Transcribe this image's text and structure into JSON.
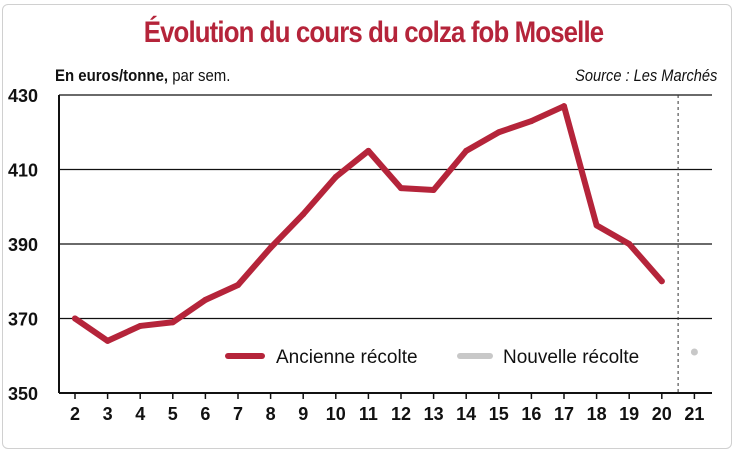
{
  "chart_data": {
    "type": "line",
    "title": "Évolution du cours du colza fob Moselle",
    "unit_bold": "En euros/tonne,",
    "unit_rest": " par sem.",
    "source": "Source : Les Marchés",
    "x": [
      2,
      3,
      4,
      5,
      6,
      7,
      8,
      9,
      10,
      11,
      12,
      13,
      14,
      15,
      16,
      17,
      18,
      19,
      20,
      21
    ],
    "xlim": [
      2,
      21
    ],
    "ylim": [
      350,
      430
    ],
    "yticks": [
      350,
      370,
      390,
      410,
      430
    ],
    "grid": true,
    "series": [
      {
        "name": "Ancienne récolte",
        "color": "#b5243a",
        "x": [
          2,
          3,
          4,
          5,
          6,
          7,
          8,
          9,
          10,
          11,
          12,
          13,
          14,
          15,
          16,
          17,
          18,
          19,
          20
        ],
        "values": [
          370,
          364,
          368,
          369,
          375,
          379,
          389,
          398,
          408,
          415,
          405,
          404.5,
          415,
          420,
          423,
          427,
          395,
          390,
          380
        ]
      },
      {
        "name": "Nouvelle récolte",
        "color": "#c8c8c8",
        "x": [
          21
        ],
        "values": [
          361
        ]
      }
    ],
    "legend": "bottom-center",
    "separator_after_x": 20.5
  }
}
